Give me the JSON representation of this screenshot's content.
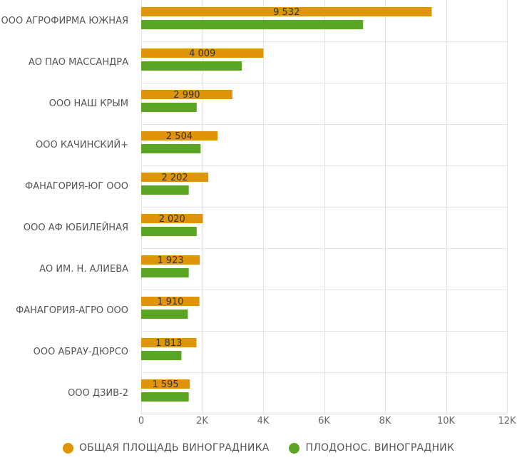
{
  "chart_data": {
    "type": "bar",
    "orientation": "horizontal",
    "categories": [
      "ООО АГРОФИРМА ЮЖНАЯ",
      "АО ПАО МАССАНДРА",
      "ООО НАШ КРЫМ",
      "ООО КАЧИНСКИЙ+",
      "ФАНАГОРИЯ-ЮГ ООО",
      "ООО АФ ЮБИЛЕЙНАЯ",
      "АО ИМ. Н. АЛИЕВА",
      "ФАНАГОРИЯ-АГРО ООО",
      "ООО АБРАУ-ДЮРСО",
      "ООО ДЗИВ-2"
    ],
    "series": [
      {
        "name": "ОБЩАЯ ПЛОЩАДЬ ВИНОГРАДНИКА",
        "color": "#e0940a",
        "values": [
          9532,
          4009,
          2990,
          2504,
          2202,
          2020,
          1923,
          1910,
          1813,
          1595
        ],
        "value_labels": [
          "9 532",
          "4 009",
          "2 990",
          "2 504",
          "2 202",
          "2 020",
          "1 923",
          "1 910",
          "1 813",
          "1 595"
        ]
      },
      {
        "name": "ПЛОДОНОС. ВИНОГРАДНИК",
        "color": "#5aa523",
        "values": [
          7280,
          3300,
          1820,
          1950,
          1560,
          1820,
          1560,
          1530,
          1320,
          1560
        ]
      }
    ],
    "xlim": [
      0,
      12000
    ],
    "x_ticks": [
      0,
      2000,
      4000,
      6000,
      8000,
      10000,
      12000
    ],
    "x_tick_labels": [
      "0",
      "2K",
      "4K",
      "6K",
      "8K",
      "10K",
      "12K"
    ],
    "grid": true,
    "legend_position": "bottom"
  }
}
